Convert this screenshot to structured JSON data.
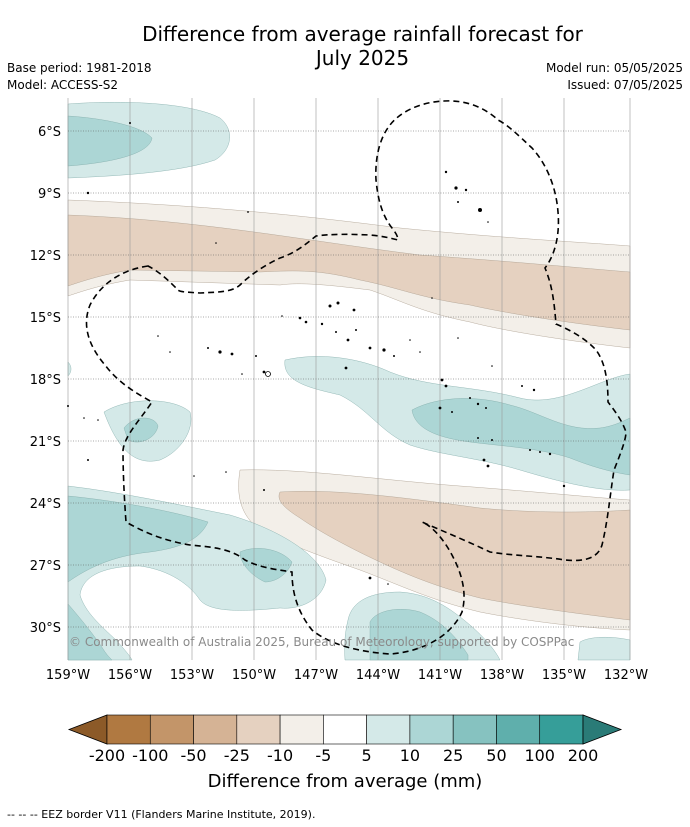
{
  "title_line1": "Difference from average rainfall forecast for",
  "title_line2": "July 2025",
  "base_period": "Base period: 1981-2018",
  "model": "Model: ACCESS-S2",
  "model_run": "Model run: 05/05/2025",
  "issued": "Issued: 07/05/2025",
  "copyright": "© Commonwealth of Australia 2025, Bureau of Meteorology, supported by COSPPac",
  "lat_labels": [
    "6°S",
    "9°S",
    "12°S",
    "15°S",
    "18°S",
    "21°S",
    "24°S",
    "27°S",
    "30°S"
  ],
  "lon_labels": [
    "159°W",
    "156°W",
    "153°W",
    "150°W",
    "147°W",
    "144°W",
    "141°W",
    "138°W",
    "135°W",
    "132°W"
  ],
  "colorbar": {
    "title": "Difference from average (mm)",
    "tick_labels": [
      "-200",
      "-100",
      "-50",
      "-25",
      "-10",
      "-5",
      "5",
      "10",
      "25",
      "50",
      "100",
      "200"
    ],
    "colors": [
      "#b07941",
      "#c39569",
      "#d5b395",
      "#e5d1c0",
      "#f3efe9",
      "#ffffff",
      "#d4e9e8",
      "#acd6d5",
      "#86c2c0",
      "#5fafac",
      "#369e99"
    ],
    "extend_low_color": "#8c5a28",
    "extend_high_color": "#2a7b77"
  },
  "footnote": "-- -- -- EEZ border V11 (Flanders Marine Institute, 2019)."
}
